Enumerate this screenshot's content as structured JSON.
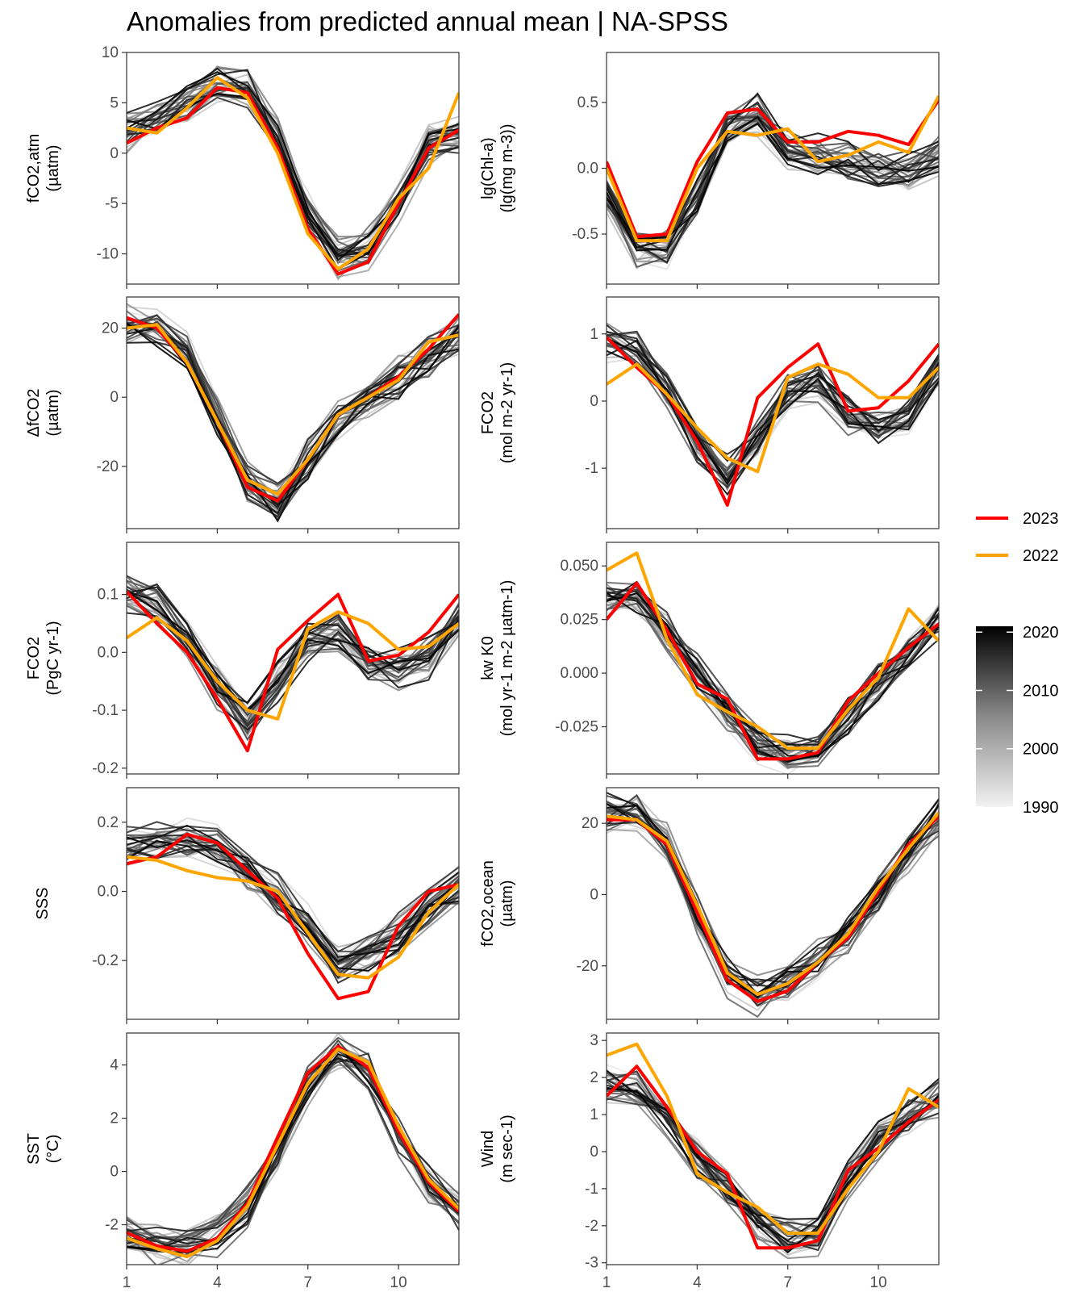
{
  "title": "Anomalies from predicted annual mean | NA-SPSS",
  "legend": {
    "highlight": [
      {
        "label": "2023",
        "color": "#ff0000"
      },
      {
        "label": "2022",
        "color": "#ffa500"
      }
    ],
    "colorbar": {
      "labels": [
        "2020",
        "2010",
        "2000",
        "1990"
      ],
      "range": [
        1990,
        2021
      ],
      "low_color": "#f2f2f2",
      "high_color": "#000000"
    }
  },
  "x_axis": {
    "ticks": [
      1,
      4,
      7,
      10
    ],
    "tick_labels": [
      "1",
      "4",
      "7",
      "10"
    ],
    "range": [
      1,
      12
    ]
  },
  "chart_data": [
    {
      "type": "line",
      "ylabel": [
        "fCO2,atm",
        "(µatm)"
      ],
      "ylim": [
        -13,
        10
      ],
      "yticks": [
        10,
        5,
        0,
        -5,
        -10
      ],
      "ytick_labels": [
        "10",
        "5",
        "0",
        "-5",
        "-10"
      ],
      "x": [
        1,
        2,
        3,
        4,
        5,
        6,
        7,
        8,
        9,
        10,
        11,
        12
      ],
      "background_mean": [
        2.0,
        3.5,
        5.0,
        7.0,
        6.5,
        1.5,
        -6.0,
        -10.5,
        -9.5,
        -5.0,
        1.0,
        2.0
      ],
      "series": [
        {
          "name": "2023",
          "values": [
            1.0,
            2.5,
            3.5,
            6.5,
            6.0,
            0.5,
            -7.5,
            -12.0,
            -10.8,
            -5.0,
            0.5,
            2.3
          ]
        },
        {
          "name": "2022",
          "values": [
            2.5,
            2.0,
            4.5,
            7.5,
            5.5,
            0.0,
            -8.0,
            -11.5,
            -9.5,
            -4.5,
            -1.5,
            6.0
          ]
        }
      ]
    },
    {
      "type": "line",
      "ylabel": [
        "lg(Chl-a)",
        "(lg(mg m-3))"
      ],
      "ylim": [
        -0.88,
        0.88
      ],
      "yticks": [
        0.5,
        0.0,
        -0.5
      ],
      "ytick_labels": [
        "0.5",
        "0.0",
        "-0.5"
      ],
      "x": [
        1,
        2,
        3,
        4,
        5,
        6,
        7,
        8,
        9,
        10,
        11,
        12
      ],
      "background_mean": [
        -0.2,
        -0.6,
        -0.6,
        -0.2,
        0.3,
        0.4,
        0.15,
        0.1,
        0.05,
        0.0,
        0.0,
        0.1
      ],
      "series": [
        {
          "name": "2023",
          "values": [
            0.05,
            -0.52,
            -0.5,
            0.05,
            0.42,
            0.45,
            0.2,
            0.2,
            0.28,
            0.25,
            0.18,
            0.52
          ]
        },
        {
          "name": "2022",
          "values": [
            0.0,
            -0.55,
            -0.55,
            0.0,
            0.28,
            0.25,
            0.3,
            0.05,
            0.1,
            0.2,
            0.12,
            0.55
          ]
        }
      ]
    },
    {
      "type": "line",
      "ylabel": [
        "ΔfCO2",
        "(µatm)"
      ],
      "ylim": [
        -38,
        29
      ],
      "yticks": [
        20,
        0,
        -20
      ],
      "ytick_labels": [
        "20",
        "0",
        "-20"
      ],
      "x": [
        1,
        2,
        3,
        4,
        5,
        6,
        7,
        8,
        9,
        10,
        11,
        12
      ],
      "background_mean": [
        21,
        20,
        14,
        -5,
        -24,
        -30,
        -18,
        -6,
        0,
        6,
        12,
        19
      ],
      "series": [
        {
          "name": "2023",
          "values": [
            23,
            20,
            10,
            -7,
            -26,
            -30,
            -18,
            -5,
            0,
            6,
            14,
            24
          ]
        },
        {
          "name": "2022",
          "values": [
            20,
            21,
            10,
            -7,
            -24,
            -28,
            -18,
            -5,
            0,
            5,
            16,
            18
          ]
        }
      ]
    },
    {
      "type": "line",
      "ylabel": [
        "FCO2",
        "(mol m-2 yr-1)"
      ],
      "ylim": [
        -1.9,
        1.55
      ],
      "yticks": [
        1,
        0,
        -1
      ],
      "ytick_labels": [
        "1",
        "0",
        "-1"
      ],
      "x": [
        1,
        2,
        3,
        4,
        5,
        6,
        7,
        8,
        9,
        10,
        11,
        12
      ],
      "background_mean": [
        0.9,
        0.8,
        0.2,
        -0.6,
        -1.1,
        -0.5,
        0.2,
        0.3,
        -0.2,
        -0.35,
        -0.2,
        0.5
      ],
      "series": [
        {
          "name": "2023",
          "values": [
            0.95,
            0.5,
            0.1,
            -0.6,
            -1.55,
            0.05,
            0.5,
            0.85,
            -0.15,
            -0.1,
            0.3,
            0.85
          ]
        },
        {
          "name": "2022",
          "values": [
            0.25,
            0.55,
            0.1,
            -0.4,
            -0.85,
            -1.05,
            0.35,
            0.55,
            0.4,
            0.05,
            0.05,
            0.5
          ]
        }
      ]
    },
    {
      "type": "line",
      "ylabel": [
        "FCO2",
        "(PgC yr-1)"
      ],
      "ylim": [
        -0.21,
        0.19
      ],
      "yticks": [
        0.1,
        0.0,
        -0.1,
        -0.2
      ],
      "ytick_labels": [
        "0.1",
        "0.0",
        "-0.1",
        "-0.2"
      ],
      "x": [
        1,
        2,
        3,
        4,
        5,
        6,
        7,
        8,
        9,
        10,
        11,
        12
      ],
      "background_mean": [
        0.1,
        0.08,
        0.02,
        -0.06,
        -0.12,
        -0.05,
        0.02,
        0.03,
        -0.02,
        -0.03,
        -0.01,
        0.06
      ],
      "series": [
        {
          "name": "2023",
          "values": [
            0.105,
            0.05,
            0.0,
            -0.08,
            -0.17,
            0.005,
            0.055,
            0.1,
            -0.015,
            -0.005,
            0.035,
            0.1
          ]
        },
        {
          "name": "2022",
          "values": [
            0.025,
            0.06,
            0.02,
            -0.05,
            -0.1,
            -0.115,
            0.04,
            0.07,
            0.05,
            0.005,
            0.01,
            0.05
          ]
        }
      ]
    },
    {
      "type": "line",
      "ylabel": [
        "kw K0",
        "(mol yr-1 m-2 µatm-1)"
      ],
      "ylim": [
        -0.047,
        0.061
      ],
      "yticks": [
        0.05,
        0.025,
        0.0,
        -0.025
      ],
      "ytick_labels": [
        "0.050",
        "0.025",
        "0.000",
        "-0.025"
      ],
      "x": [
        1,
        2,
        3,
        4,
        5,
        6,
        7,
        8,
        9,
        10,
        11,
        12
      ],
      "background_mean": [
        0.035,
        0.035,
        0.02,
        0.0,
        -0.018,
        -0.032,
        -0.037,
        -0.036,
        -0.02,
        -0.005,
        0.01,
        0.025
      ],
      "series": [
        {
          "name": "2023",
          "values": [
            0.025,
            0.042,
            0.02,
            -0.005,
            -0.012,
            -0.04,
            -0.04,
            -0.037,
            -0.013,
            0.0,
            0.012,
            0.023
          ]
        },
        {
          "name": "2022",
          "values": [
            0.048,
            0.056,
            0.016,
            -0.01,
            -0.018,
            -0.025,
            -0.035,
            -0.035,
            -0.017,
            -0.002,
            0.03,
            0.015
          ]
        }
      ]
    },
    {
      "type": "line",
      "ylabel": [
        "SSS",
        ""
      ],
      "ylim": [
        -0.37,
        0.3
      ],
      "yticks": [
        0.2,
        0.0,
        -0.2
      ],
      "ytick_labels": [
        "0.2",
        "0.0",
        "-0.2"
      ],
      "x": [
        1,
        2,
        3,
        4,
        5,
        6,
        7,
        8,
        9,
        10,
        11,
        12
      ],
      "background_mean": [
        0.13,
        0.15,
        0.15,
        0.13,
        0.06,
        -0.01,
        -0.1,
        -0.2,
        -0.18,
        -0.12,
        -0.05,
        0.02
      ],
      "series": [
        {
          "name": "2023",
          "values": [
            0.08,
            0.1,
            0.165,
            0.14,
            0.06,
            -0.02,
            -0.18,
            -0.31,
            -0.29,
            -0.1,
            0.0,
            0.02
          ]
        },
        {
          "name": "2022",
          "values": [
            0.1,
            0.09,
            0.06,
            0.04,
            0.03,
            0.0,
            -0.12,
            -0.24,
            -0.25,
            -0.19,
            -0.06,
            0.02
          ]
        }
      ]
    },
    {
      "type": "line",
      "ylabel": [
        "fCO2,ocean",
        "(µatm)"
      ],
      "ylim": [
        -35,
        30
      ],
      "yticks": [
        20,
        0,
        -20
      ],
      "ytick_labels": [
        "20",
        "0",
        "-20"
      ],
      "x": [
        1,
        2,
        3,
        4,
        5,
        6,
        7,
        8,
        9,
        10,
        11,
        12
      ],
      "background_mean": [
        23,
        23,
        15,
        -5,
        -23,
        -28,
        -24,
        -18,
        -11,
        0,
        12,
        22
      ],
      "series": [
        {
          "name": "2023",
          "values": [
            21,
            21,
            14,
            -5,
            -24,
            -30,
            -27,
            -19,
            -12,
            1,
            14,
            22
          ]
        },
        {
          "name": "2022",
          "values": [
            22,
            21,
            15,
            -3,
            -22,
            -28,
            -25,
            -19,
            -11,
            2,
            13,
            23
          ]
        }
      ]
    },
    {
      "type": "line",
      "ylabel": [
        "SST",
        "(°C)"
      ],
      "ylim": [
        -3.5,
        5.2
      ],
      "yticks": [
        4,
        2,
        0,
        -2
      ],
      "ytick_labels": [
        "4",
        "2",
        "0",
        "-2"
      ],
      "x": [
        1,
        2,
        3,
        4,
        5,
        6,
        7,
        8,
        9,
        10,
        11,
        12
      ],
      "background_mean": [
        -2.4,
        -2.8,
        -2.9,
        -2.4,
        -1.3,
        0.6,
        3.2,
        4.4,
        3.8,
        1.4,
        -0.4,
        -1.5
      ],
      "series": [
        {
          "name": "2023",
          "values": [
            -2.3,
            -2.8,
            -3.0,
            -2.5,
            -1.2,
            1.3,
            3.7,
            4.7,
            3.9,
            1.5,
            -0.4,
            -1.5
          ]
        },
        {
          "name": "2022",
          "values": [
            -2.5,
            -2.9,
            -3.2,
            -2.6,
            -1.3,
            1.0,
            3.3,
            4.6,
            4.1,
            1.7,
            -0.3,
            -1.4
          ]
        }
      ]
    },
    {
      "type": "line",
      "ylabel": [
        "Wind",
        "(m sec-1)"
      ],
      "ylim": [
        -3.05,
        3.2
      ],
      "yticks": [
        3,
        2,
        1,
        0,
        -1,
        -2,
        -3
      ],
      "ytick_labels": [
        "3",
        "2",
        "1",
        "0",
        "-1",
        "-2",
        "-3"
      ],
      "x": [
        1,
        2,
        3,
        4,
        5,
        6,
        7,
        8,
        9,
        10,
        11,
        12
      ],
      "background_mean": [
        1.8,
        1.7,
        1.0,
        -0.2,
        -1.0,
        -1.9,
        -2.3,
        -2.2,
        -0.8,
        0.3,
        1.0,
        1.4
      ],
      "series": [
        {
          "name": "2023",
          "values": [
            1.5,
            2.3,
            1.2,
            0.0,
            -0.6,
            -2.6,
            -2.6,
            -2.4,
            -0.5,
            0.1,
            0.8,
            1.4
          ]
        },
        {
          "name": "2022",
          "values": [
            2.6,
            2.9,
            1.5,
            -0.6,
            -1.1,
            -1.5,
            -2.2,
            -2.2,
            -1.0,
            0.0,
            1.7,
            1.2
          ]
        }
      ]
    }
  ]
}
